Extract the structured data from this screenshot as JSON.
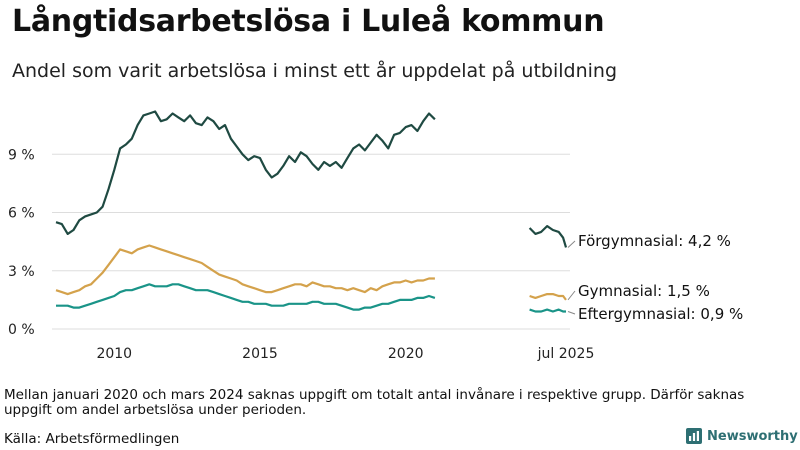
{
  "header": {
    "title": "Långtidsarbetslösa i Luleå kommun",
    "subtitle": "Andel som varit arbetslösa i minst ett år uppdelat på utbildning"
  },
  "footer": {
    "note": "Mellan januari 2020 och mars 2024 saknas uppgift om totalt antal invånare i respektive grupp. Därför saknas uppgift om andel arbetslösa under perioden.",
    "source": "Källa: Arbetsförmedlingen",
    "brand": "Newsworthy"
  },
  "colors": {
    "forgymnasial": "#1f4a42",
    "gymnasial": "#d4a24c",
    "eftergymnasial": "#1a9488",
    "grid": "#dddddd",
    "brand": "#2e6f73"
  },
  "chart_data": {
    "type": "line",
    "x_unit": "year",
    "ylim": [
      0,
      12
    ],
    "yticks": [
      {
        "value": 0,
        "label": "0 %"
      },
      {
        "value": 3,
        "label": "3 %"
      },
      {
        "value": 6,
        "label": "6 %"
      },
      {
        "value": 9,
        "label": "9 %"
      }
    ],
    "xticks": [
      {
        "value": 2010,
        "label": "2010"
      },
      {
        "value": 2015,
        "label": "2015"
      },
      {
        "value": 2020,
        "label": "2020"
      },
      {
        "value": 2025.5,
        "label": "jul 2025"
      }
    ],
    "series": [
      {
        "name": "Förgymnasial",
        "color_key": "forgymnasial",
        "end_label": "Förgymnasial: 4,2 %",
        "segments": [
          [
            [
              2008.0,
              5.5
            ],
            [
              2008.2,
              5.4
            ],
            [
              2008.4,
              4.9
            ],
            [
              2008.6,
              5.1
            ],
            [
              2008.8,
              5.6
            ],
            [
              2009.0,
              5.8
            ],
            [
              2009.2,
              5.9
            ],
            [
              2009.4,
              6.0
            ],
            [
              2009.6,
              6.3
            ],
            [
              2009.8,
              7.2
            ],
            [
              2010.0,
              8.2
            ],
            [
              2010.2,
              9.3
            ],
            [
              2010.4,
              9.5
            ],
            [
              2010.6,
              9.8
            ],
            [
              2010.8,
              10.5
            ],
            [
              2011.0,
              11.0
            ],
            [
              2011.2,
              11.1
            ],
            [
              2011.4,
              11.2
            ],
            [
              2011.6,
              10.7
            ],
            [
              2011.8,
              10.8
            ],
            [
              2012.0,
              11.1
            ],
            [
              2012.2,
              10.9
            ],
            [
              2012.4,
              10.7
            ],
            [
              2012.6,
              11.0
            ],
            [
              2012.8,
              10.6
            ],
            [
              2013.0,
              10.5
            ],
            [
              2013.2,
              10.9
            ],
            [
              2013.4,
              10.7
            ],
            [
              2013.6,
              10.3
            ],
            [
              2013.8,
              10.5
            ],
            [
              2014.0,
              9.8
            ],
            [
              2014.2,
              9.4
            ],
            [
              2014.4,
              9.0
            ],
            [
              2014.6,
              8.7
            ],
            [
              2014.8,
              8.9
            ],
            [
              2015.0,
              8.8
            ],
            [
              2015.2,
              8.2
            ],
            [
              2015.4,
              7.8
            ],
            [
              2015.6,
              8.0
            ],
            [
              2015.8,
              8.4
            ],
            [
              2016.0,
              8.9
            ],
            [
              2016.2,
              8.6
            ],
            [
              2016.4,
              9.1
            ],
            [
              2016.6,
              8.9
            ],
            [
              2016.8,
              8.5
            ],
            [
              2017.0,
              8.2
            ],
            [
              2017.2,
              8.6
            ],
            [
              2017.4,
              8.4
            ],
            [
              2017.6,
              8.6
            ],
            [
              2017.8,
              8.3
            ],
            [
              2018.0,
              8.8
            ],
            [
              2018.2,
              9.3
            ],
            [
              2018.4,
              9.5
            ],
            [
              2018.6,
              9.2
            ],
            [
              2018.8,
              9.6
            ],
            [
              2019.0,
              10.0
            ],
            [
              2019.2,
              9.7
            ],
            [
              2019.4,
              9.3
            ],
            [
              2019.6,
              10.0
            ],
            [
              2019.8,
              10.1
            ],
            [
              2020.0,
              10.4
            ],
            [
              2020.2,
              10.5
            ],
            [
              2020.4,
              10.2
            ],
            [
              2020.6,
              10.7
            ],
            [
              2020.8,
              11.1
            ],
            [
              2021.0,
              10.8
            ]
          ],
          [
            [
              2024.25,
              5.2
            ],
            [
              2024.45,
              4.9
            ],
            [
              2024.65,
              5.0
            ],
            [
              2024.85,
              5.3
            ],
            [
              2025.05,
              5.1
            ],
            [
              2025.25,
              5.0
            ],
            [
              2025.4,
              4.7
            ],
            [
              2025.5,
              4.2
            ]
          ]
        ]
      },
      {
        "name": "Gymnasial",
        "color_key": "gymnasial",
        "end_label": "Gymnasial: 1,5 %",
        "segments": [
          [
            [
              2008.0,
              2.0
            ],
            [
              2008.2,
              1.9
            ],
            [
              2008.4,
              1.8
            ],
            [
              2008.6,
              1.9
            ],
            [
              2008.8,
              2.0
            ],
            [
              2009.0,
              2.2
            ],
            [
              2009.2,
              2.3
            ],
            [
              2009.4,
              2.6
            ],
            [
              2009.6,
              2.9
            ],
            [
              2009.8,
              3.3
            ],
            [
              2010.0,
              3.7
            ],
            [
              2010.2,
              4.1
            ],
            [
              2010.4,
              4.0
            ],
            [
              2010.6,
              3.9
            ],
            [
              2010.8,
              4.1
            ],
            [
              2011.0,
              4.2
            ],
            [
              2011.2,
              4.3
            ],
            [
              2011.4,
              4.2
            ],
            [
              2011.6,
              4.1
            ],
            [
              2011.8,
              4.0
            ],
            [
              2012.0,
              3.9
            ],
            [
              2012.2,
              3.8
            ],
            [
              2012.4,
              3.7
            ],
            [
              2012.6,
              3.6
            ],
            [
              2012.8,
              3.5
            ],
            [
              2013.0,
              3.4
            ],
            [
              2013.2,
              3.2
            ],
            [
              2013.4,
              3.0
            ],
            [
              2013.6,
              2.8
            ],
            [
              2013.8,
              2.7
            ],
            [
              2014.0,
              2.6
            ],
            [
              2014.2,
              2.5
            ],
            [
              2014.4,
              2.3
            ],
            [
              2014.6,
              2.2
            ],
            [
              2014.8,
              2.1
            ],
            [
              2015.0,
              2.0
            ],
            [
              2015.2,
              1.9
            ],
            [
              2015.4,
              1.9
            ],
            [
              2015.6,
              2.0
            ],
            [
              2015.8,
              2.1
            ],
            [
              2016.0,
              2.2
            ],
            [
              2016.2,
              2.3
            ],
            [
              2016.4,
              2.3
            ],
            [
              2016.6,
              2.2
            ],
            [
              2016.8,
              2.4
            ],
            [
              2017.0,
              2.3
            ],
            [
              2017.2,
              2.2
            ],
            [
              2017.4,
              2.2
            ],
            [
              2017.6,
              2.1
            ],
            [
              2017.8,
              2.1
            ],
            [
              2018.0,
              2.0
            ],
            [
              2018.2,
              2.1
            ],
            [
              2018.4,
              2.0
            ],
            [
              2018.6,
              1.9
            ],
            [
              2018.8,
              2.1
            ],
            [
              2019.0,
              2.0
            ],
            [
              2019.2,
              2.2
            ],
            [
              2019.4,
              2.3
            ],
            [
              2019.6,
              2.4
            ],
            [
              2019.8,
              2.4
            ],
            [
              2020.0,
              2.5
            ],
            [
              2020.2,
              2.4
            ],
            [
              2020.4,
              2.5
            ],
            [
              2020.6,
              2.5
            ],
            [
              2020.8,
              2.6
            ],
            [
              2021.0,
              2.6
            ]
          ],
          [
            [
              2024.25,
              1.7
            ],
            [
              2024.45,
              1.6
            ],
            [
              2024.65,
              1.7
            ],
            [
              2024.85,
              1.8
            ],
            [
              2025.05,
              1.8
            ],
            [
              2025.25,
              1.7
            ],
            [
              2025.4,
              1.7
            ],
            [
              2025.5,
              1.5
            ]
          ]
        ]
      },
      {
        "name": "Eftergymnasial",
        "color_key": "eftergymnasial",
        "end_label": "Eftergymnasial: 0,9 %",
        "segments": [
          [
            [
              2008.0,
              1.2
            ],
            [
              2008.2,
              1.2
            ],
            [
              2008.4,
              1.2
            ],
            [
              2008.6,
              1.1
            ],
            [
              2008.8,
              1.1
            ],
            [
              2009.0,
              1.2
            ],
            [
              2009.2,
              1.3
            ],
            [
              2009.4,
              1.4
            ],
            [
              2009.6,
              1.5
            ],
            [
              2009.8,
              1.6
            ],
            [
              2010.0,
              1.7
            ],
            [
              2010.2,
              1.9
            ],
            [
              2010.4,
              2.0
            ],
            [
              2010.6,
              2.0
            ],
            [
              2010.8,
              2.1
            ],
            [
              2011.0,
              2.2
            ],
            [
              2011.2,
              2.3
            ],
            [
              2011.4,
              2.2
            ],
            [
              2011.6,
              2.2
            ],
            [
              2011.8,
              2.2
            ],
            [
              2012.0,
              2.3
            ],
            [
              2012.2,
              2.3
            ],
            [
              2012.4,
              2.2
            ],
            [
              2012.6,
              2.1
            ],
            [
              2012.8,
              2.0
            ],
            [
              2013.0,
              2.0
            ],
            [
              2013.2,
              2.0
            ],
            [
              2013.4,
              1.9
            ],
            [
              2013.6,
              1.8
            ],
            [
              2013.8,
              1.7
            ],
            [
              2014.0,
              1.6
            ],
            [
              2014.2,
              1.5
            ],
            [
              2014.4,
              1.4
            ],
            [
              2014.6,
              1.4
            ],
            [
              2014.8,
              1.3
            ],
            [
              2015.0,
              1.3
            ],
            [
              2015.2,
              1.3
            ],
            [
              2015.4,
              1.2
            ],
            [
              2015.6,
              1.2
            ],
            [
              2015.8,
              1.2
            ],
            [
              2016.0,
              1.3
            ],
            [
              2016.2,
              1.3
            ],
            [
              2016.4,
              1.3
            ],
            [
              2016.6,
              1.3
            ],
            [
              2016.8,
              1.4
            ],
            [
              2017.0,
              1.4
            ],
            [
              2017.2,
              1.3
            ],
            [
              2017.4,
              1.3
            ],
            [
              2017.6,
              1.3
            ],
            [
              2017.8,
              1.2
            ],
            [
              2018.0,
              1.1
            ],
            [
              2018.2,
              1.0
            ],
            [
              2018.4,
              1.0
            ],
            [
              2018.6,
              1.1
            ],
            [
              2018.8,
              1.1
            ],
            [
              2019.0,
              1.2
            ],
            [
              2019.2,
              1.3
            ],
            [
              2019.4,
              1.3
            ],
            [
              2019.6,
              1.4
            ],
            [
              2019.8,
              1.5
            ],
            [
              2020.0,
              1.5
            ],
            [
              2020.2,
              1.5
            ],
            [
              2020.4,
              1.6
            ],
            [
              2020.6,
              1.6
            ],
            [
              2020.8,
              1.7
            ],
            [
              2021.0,
              1.6
            ]
          ],
          [
            [
              2024.25,
              1.0
            ],
            [
              2024.45,
              0.9
            ],
            [
              2024.65,
              0.9
            ],
            [
              2024.85,
              1.0
            ],
            [
              2025.05,
              0.9
            ],
            [
              2025.25,
              1.0
            ],
            [
              2025.4,
              0.9
            ],
            [
              2025.5,
              0.9
            ]
          ]
        ]
      }
    ]
  }
}
